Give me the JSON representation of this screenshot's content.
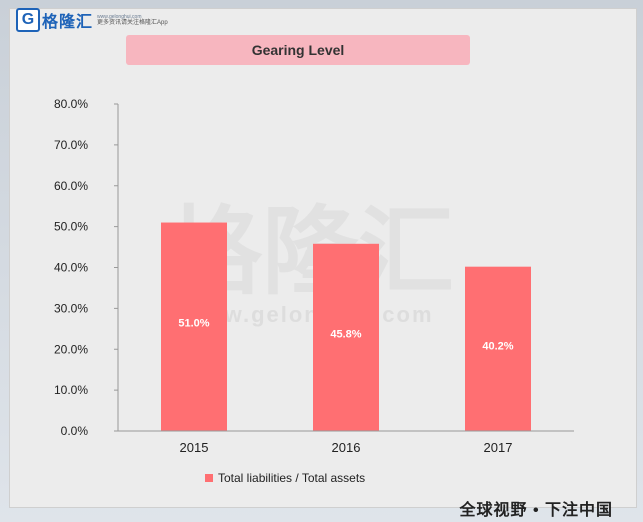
{
  "brand": {
    "logo_letter": "G",
    "name": "格隆汇",
    "domain": "www.gelonghui.com",
    "tagline": "更多资讯请关注格隆汇App",
    "watermark_cn": "格隆汇",
    "watermark_url": "www.gelonghui.com"
  },
  "footer_slogan": "全球视野 • 下注中国",
  "colors": {
    "bar": "#ff6f72",
    "title_bg": "#f7b6bf",
    "brand": "#1e63b8"
  },
  "chart_data": {
    "type": "bar",
    "title": "Gearing Level",
    "categories": [
      "2015",
      "2016",
      "2017"
    ],
    "series": [
      {
        "name": "Total liabilities / Total assets",
        "values": [
          51.0,
          45.8,
          40.2
        ]
      }
    ],
    "value_labels": [
      "51.0%",
      "45.8%",
      "40.2%"
    ],
    "ylim": [
      0,
      80
    ],
    "ytick_values": [
      0,
      10,
      20,
      30,
      40,
      50,
      60,
      70,
      80
    ],
    "yticks": [
      "0.0%",
      "10.0%",
      "20.0%",
      "30.0%",
      "40.0%",
      "50.0%",
      "60.0%",
      "70.0%",
      "80.0%"
    ],
    "legend_position": "bottom",
    "grid": false
  }
}
